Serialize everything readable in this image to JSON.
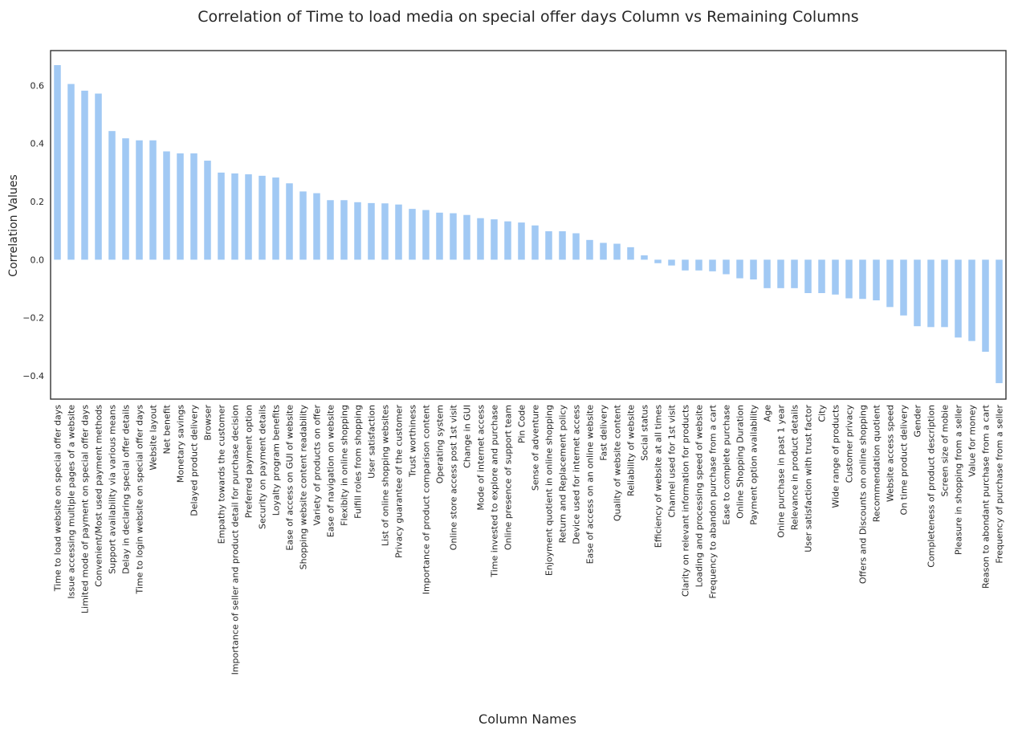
{
  "chart_data": {
    "type": "bar",
    "title": "Correlation of Time to load media on special offer days Column vs Remaining Columns",
    "xlabel": "Column Names",
    "ylabel": "Correlation Values",
    "ylim": [
      -0.48,
      0.72
    ],
    "yticks": [
      -0.4,
      -0.2,
      0.0,
      0.2,
      0.4,
      0.6
    ],
    "ytick_labels": [
      "−0.4",
      "−0.2",
      "0.0",
      "0.2",
      "0.4",
      "0.6"
    ],
    "grid": false,
    "bar_color": "#a1c9f4",
    "categories": [
      "Time to load website on special offer days",
      "Issue accessing multiple pages of a website",
      "Limited mode of payment on special offer days",
      "Convenient/Most used payment methods",
      "Support availability via various means",
      "Delay in declaring special offer details",
      "Time to login website on special offer days",
      "Website layout",
      "Net benefit",
      "Monetary savings",
      "Delayed product delivery",
      "Browser",
      "Empathy towards the customer",
      "Importance of seller and product detail for purchase decision",
      "Preferred payment option",
      "Security on payment details",
      "Loyalty program benefits",
      "Ease of access on GUI of website",
      "Shopping website content readability",
      "Variety of products on offer",
      "Ease of navigation on website",
      "Flexibity in online shopping",
      "Fulfill roles from shopping",
      "User satisfaction",
      "List of online shopping websites",
      "Privacy guarantee of the customer",
      "Trust worthiness",
      "Importance of product comparison content",
      "Operating system",
      "Online store access post 1st visit",
      "Change in GUI",
      "Mode of internet access",
      "Time invested to explore and purchase",
      "Online presence of support team",
      "Pin Code",
      "Sense of adventure",
      "Enjoyment quotient in online shopping",
      "Return and Replacement policy",
      "Device used for internet access",
      "Ease of access on an online website",
      "Fast delivery",
      "Quality of website content",
      "Reliability of website",
      "Social status",
      "Efficiency of website at all times",
      "Channel used for 1st visit",
      "Clarity on relevant information for products",
      "Loading and processing speed of website",
      "Frequency to abandon purchase from a cart",
      "Ease to complete purchase",
      "Online Shopping Duration",
      "Payment option availability",
      "Age",
      "Onine purchase in past 1 year",
      "Relevance in product details",
      "User satisfaction with trust factor",
      "City",
      "Wide range of products",
      "Customer privacy",
      "Offers and Discounts on online shopping",
      "Recommendation quotient",
      "Website access speed",
      "On time product delivery",
      "Gender",
      "Completeness of product description",
      "Screen size of mobie",
      "Pleasure in shopping from a seller",
      "Value for money",
      "Reason to abondant purchase from a cart",
      "Frequency of purchase from a seller"
    ],
    "values": [
      0.67,
      0.605,
      0.582,
      0.572,
      0.443,
      0.418,
      0.411,
      0.411,
      0.373,
      0.366,
      0.366,
      0.341,
      0.3,
      0.297,
      0.294,
      0.289,
      0.283,
      0.263,
      0.235,
      0.229,
      0.205,
      0.205,
      0.198,
      0.195,
      0.194,
      0.19,
      0.175,
      0.171,
      0.162,
      0.16,
      0.154,
      0.143,
      0.139,
      0.132,
      0.128,
      0.118,
      0.098,
      0.098,
      0.091,
      0.068,
      0.058,
      0.055,
      0.043,
      0.015,
      -0.012,
      -0.02,
      -0.037,
      -0.037,
      -0.04,
      -0.05,
      -0.064,
      -0.068,
      -0.098,
      -0.098,
      -0.098,
      -0.115,
      -0.115,
      -0.12,
      -0.133,
      -0.135,
      -0.14,
      -0.163,
      -0.192,
      -0.229,
      -0.232,
      -0.232,
      -0.268,
      -0.28,
      -0.317,
      -0.425
    ]
  }
}
